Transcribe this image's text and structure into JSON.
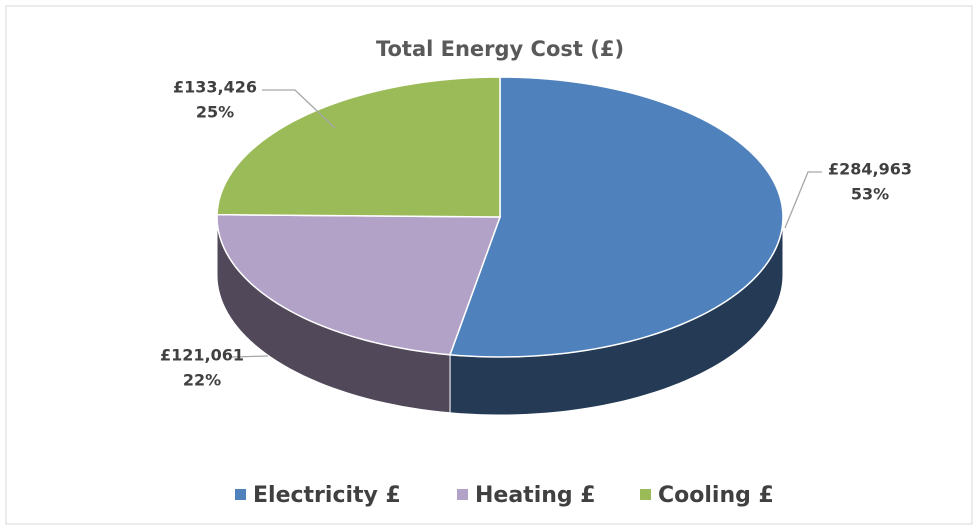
{
  "chart_data": {
    "type": "pie",
    "title": "Total Energy Cost (£)",
    "categories": [
      "Electricity £",
      "Heating £",
      "Cooling £"
    ],
    "values": [
      284963,
      121061,
      133426
    ],
    "value_labels": [
      "£284,963",
      "£121,061",
      "£133,426"
    ],
    "percentages": [
      53,
      22,
      25
    ],
    "percentage_labels": [
      "53%",
      "22%",
      "25%"
    ],
    "colors": [
      "#4f81bd",
      "#b3a2c7",
      "#9bbb59"
    ],
    "legend": "bottom"
  }
}
